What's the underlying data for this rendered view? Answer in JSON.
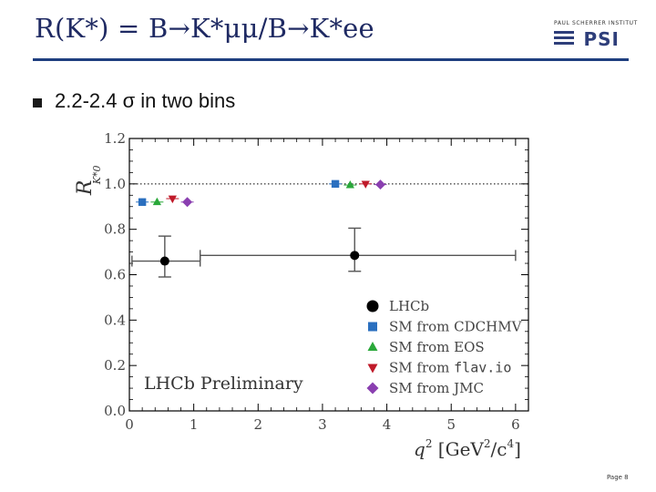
{
  "slide": {
    "title": "R(K*) = B→K*μμ/B→K*ee",
    "bullet": "2.2-2.4 σ in two bins",
    "page_label": "Page 8"
  },
  "logo": {
    "caption": "PAUL SCHERRER INSTITUT",
    "mark": "PSI"
  },
  "colors": {
    "title": "#1f2a63",
    "rule": "#1f3f7f",
    "lhcb": "#000000",
    "cdhmv": "#2a6fbf",
    "eos": "#2aa83a",
    "flavio": "#c01a2a",
    "jmc": "#8a3fb0"
  },
  "chart_data": {
    "type": "scatter",
    "ylabel": "R_K*0",
    "xlabel_parts": {
      "main": "q",
      "exp": "2",
      "bracket": "[GeV",
      "mid": "/c",
      "close": "]"
    },
    "xlim": [
      0,
      6.2
    ],
    "ylim": [
      0,
      1.2
    ],
    "x_ticks": [
      "0",
      "1",
      "2",
      "3",
      "4",
      "5",
      "6"
    ],
    "y_ticks": [
      "0.0",
      "0.2",
      "0.4",
      "0.6",
      "0.8",
      "1.0",
      "1.2"
    ],
    "reference_line": 1.0,
    "annotation": "LHCb Preliminary",
    "legend_position": "lower-right",
    "series": [
      {
        "name": "LHCb",
        "marker": "circle",
        "color": "#000000",
        "points": [
          {
            "x": 0.55,
            "xerr": [
              0.51,
              0.55
            ],
            "y": 0.66,
            "yerr": [
              0.07,
              0.11
            ]
          },
          {
            "x": 3.5,
            "xerr": [
              2.4,
              2.5
            ],
            "y": 0.685,
            "yerr": [
              0.07,
              0.12
            ]
          }
        ]
      },
      {
        "name": "SM from CDCHMV",
        "marker": "square",
        "color": "#2a6fbf",
        "points": [
          {
            "x": 0.2,
            "y": 0.92
          },
          {
            "x": 3.2,
            "y": 1.0
          }
        ]
      },
      {
        "name": "SM from EOS",
        "marker": "triangle-up",
        "color": "#2aa83a",
        "points": [
          {
            "x": 0.43,
            "y": 0.92
          },
          {
            "x": 3.43,
            "y": 0.995
          }
        ]
      },
      {
        "name": "SM from flav.io",
        "marker": "triangle-down",
        "color": "#c01a2a",
        "points": [
          {
            "x": 0.67,
            "y": 0.935
          },
          {
            "x": 3.67,
            "y": 1.0
          }
        ]
      },
      {
        "name": "SM from JMC",
        "marker": "diamond",
        "color": "#8a3fb0",
        "points": [
          {
            "x": 0.9,
            "y": 0.92
          },
          {
            "x": 3.9,
            "y": 0.997
          }
        ]
      }
    ]
  }
}
